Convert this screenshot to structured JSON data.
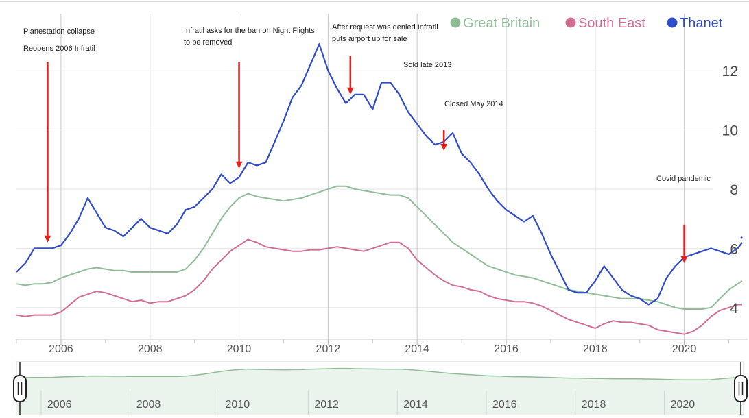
{
  "chart_data": {
    "type": "line",
    "title": "",
    "xlabel": "",
    "ylabel": "",
    "xlim": [
      2005.0,
      2021.3
    ],
    "ylim": [
      3.0,
      13.0
    ],
    "y_ticks": [
      "12",
      "10",
      "8",
      "6",
      "4"
    ],
    "x_ticks": [
      "2006",
      "2008",
      "2010",
      "2012",
      "2014",
      "2016",
      "2018",
      "2020"
    ],
    "navigator_ticks": [
      "2006",
      "2008",
      "2010",
      "2012",
      "2014",
      "2016",
      "2018",
      "2020"
    ],
    "grid": true,
    "legend_position": "top-right",
    "series": [
      {
        "name": "Great Britain",
        "color": "#8fbc96",
        "points": [
          [
            2005.0,
            4.8
          ],
          [
            2005.2,
            4.75
          ],
          [
            2005.4,
            4.8
          ],
          [
            2005.6,
            4.8
          ],
          [
            2005.8,
            4.85
          ],
          [
            2006.0,
            5.0
          ],
          [
            2006.2,
            5.1
          ],
          [
            2006.4,
            5.2
          ],
          [
            2006.6,
            5.3
          ],
          [
            2006.8,
            5.35
          ],
          [
            2007.0,
            5.3
          ],
          [
            2007.2,
            5.25
          ],
          [
            2007.4,
            5.25
          ],
          [
            2007.6,
            5.2
          ],
          [
            2007.8,
            5.2
          ],
          [
            2008.0,
            5.2
          ],
          [
            2008.2,
            5.2
          ],
          [
            2008.4,
            5.2
          ],
          [
            2008.6,
            5.2
          ],
          [
            2008.8,
            5.3
          ],
          [
            2009.0,
            5.6
          ],
          [
            2009.2,
            6.0
          ],
          [
            2009.4,
            6.5
          ],
          [
            2009.6,
            7.0
          ],
          [
            2009.8,
            7.4
          ],
          [
            2010.0,
            7.7
          ],
          [
            2010.2,
            7.85
          ],
          [
            2010.4,
            7.75
          ],
          [
            2010.6,
            7.7
          ],
          [
            2010.8,
            7.65
          ],
          [
            2011.0,
            7.6
          ],
          [
            2011.2,
            7.65
          ],
          [
            2011.4,
            7.7
          ],
          [
            2011.6,
            7.8
          ],
          [
            2011.8,
            7.9
          ],
          [
            2012.0,
            8.0
          ],
          [
            2012.2,
            8.1
          ],
          [
            2012.4,
            8.1
          ],
          [
            2012.6,
            8.0
          ],
          [
            2012.8,
            7.95
          ],
          [
            2013.0,
            7.9
          ],
          [
            2013.2,
            7.85
          ],
          [
            2013.4,
            7.8
          ],
          [
            2013.6,
            7.8
          ],
          [
            2013.8,
            7.7
          ],
          [
            2014.0,
            7.4
          ],
          [
            2014.2,
            7.1
          ],
          [
            2014.4,
            6.8
          ],
          [
            2014.6,
            6.5
          ],
          [
            2014.8,
            6.2
          ],
          [
            2015.0,
            6.0
          ],
          [
            2015.2,
            5.8
          ],
          [
            2015.4,
            5.6
          ],
          [
            2015.6,
            5.4
          ],
          [
            2015.8,
            5.3
          ],
          [
            2016.0,
            5.2
          ],
          [
            2016.2,
            5.1
          ],
          [
            2016.4,
            5.05
          ],
          [
            2016.6,
            5.0
          ],
          [
            2016.8,
            4.9
          ],
          [
            2017.0,
            4.8
          ],
          [
            2017.2,
            4.7
          ],
          [
            2017.4,
            4.6
          ],
          [
            2017.6,
            4.55
          ],
          [
            2017.8,
            4.5
          ],
          [
            2018.0,
            4.45
          ],
          [
            2018.2,
            4.4
          ],
          [
            2018.4,
            4.35
          ],
          [
            2018.6,
            4.3
          ],
          [
            2018.8,
            4.3
          ],
          [
            2019.0,
            4.3
          ],
          [
            2019.2,
            4.25
          ],
          [
            2019.4,
            4.2
          ],
          [
            2019.6,
            4.1
          ],
          [
            2019.8,
            4.0
          ],
          [
            2020.0,
            3.95
          ],
          [
            2020.2,
            3.95
          ],
          [
            2020.4,
            3.95
          ],
          [
            2020.6,
            4.0
          ],
          [
            2020.8,
            4.3
          ],
          [
            2021.0,
            4.6
          ],
          [
            2021.2,
            4.8
          ],
          [
            2021.3,
            4.9
          ]
        ]
      },
      {
        "name": "South East",
        "color": "#cf6d92",
        "points": [
          [
            2005.0,
            3.75
          ],
          [
            2005.2,
            3.7
          ],
          [
            2005.4,
            3.75
          ],
          [
            2005.6,
            3.75
          ],
          [
            2005.8,
            3.75
          ],
          [
            2006.0,
            3.85
          ],
          [
            2006.2,
            4.1
          ],
          [
            2006.4,
            4.35
          ],
          [
            2006.6,
            4.45
          ],
          [
            2006.8,
            4.55
          ],
          [
            2007.0,
            4.5
          ],
          [
            2007.2,
            4.4
          ],
          [
            2007.4,
            4.3
          ],
          [
            2007.6,
            4.2
          ],
          [
            2007.8,
            4.25
          ],
          [
            2008.0,
            4.15
          ],
          [
            2008.2,
            4.2
          ],
          [
            2008.4,
            4.2
          ],
          [
            2008.6,
            4.3
          ],
          [
            2008.8,
            4.4
          ],
          [
            2009.0,
            4.6
          ],
          [
            2009.2,
            4.9
          ],
          [
            2009.4,
            5.3
          ],
          [
            2009.6,
            5.6
          ],
          [
            2009.8,
            5.9
          ],
          [
            2010.0,
            6.1
          ],
          [
            2010.2,
            6.3
          ],
          [
            2010.4,
            6.2
          ],
          [
            2010.6,
            6.05
          ],
          [
            2010.8,
            6.0
          ],
          [
            2011.0,
            5.95
          ],
          [
            2011.2,
            5.9
          ],
          [
            2011.4,
            5.9
          ],
          [
            2011.6,
            5.95
          ],
          [
            2011.8,
            5.95
          ],
          [
            2012.0,
            6.0
          ],
          [
            2012.2,
            6.05
          ],
          [
            2012.4,
            6.0
          ],
          [
            2012.6,
            5.95
          ],
          [
            2012.8,
            5.9
          ],
          [
            2013.0,
            6.0
          ],
          [
            2013.2,
            6.1
          ],
          [
            2013.4,
            6.2
          ],
          [
            2013.6,
            6.2
          ],
          [
            2013.8,
            6.0
          ],
          [
            2014.0,
            5.6
          ],
          [
            2014.2,
            5.35
          ],
          [
            2014.4,
            5.1
          ],
          [
            2014.6,
            4.9
          ],
          [
            2014.8,
            4.75
          ],
          [
            2015.0,
            4.7
          ],
          [
            2015.2,
            4.6
          ],
          [
            2015.4,
            4.55
          ],
          [
            2015.6,
            4.4
          ],
          [
            2015.8,
            4.3
          ],
          [
            2016.0,
            4.25
          ],
          [
            2016.2,
            4.2
          ],
          [
            2016.4,
            4.2
          ],
          [
            2016.6,
            4.15
          ],
          [
            2016.8,
            4.05
          ],
          [
            2017.0,
            3.9
          ],
          [
            2017.2,
            3.75
          ],
          [
            2017.4,
            3.6
          ],
          [
            2017.6,
            3.5
          ],
          [
            2017.8,
            3.4
          ],
          [
            2018.0,
            3.3
          ],
          [
            2018.2,
            3.45
          ],
          [
            2018.4,
            3.55
          ],
          [
            2018.6,
            3.5
          ],
          [
            2018.8,
            3.5
          ],
          [
            2019.0,
            3.45
          ],
          [
            2019.2,
            3.4
          ],
          [
            2019.4,
            3.25
          ],
          [
            2019.6,
            3.2
          ],
          [
            2019.8,
            3.15
          ],
          [
            2020.0,
            3.1
          ],
          [
            2020.2,
            3.2
          ],
          [
            2020.4,
            3.4
          ],
          [
            2020.6,
            3.7
          ],
          [
            2020.8,
            3.9
          ],
          [
            2021.0,
            4.0
          ],
          [
            2021.2,
            4.1
          ],
          [
            2021.3,
            4.1
          ]
        ]
      },
      {
        "name": "Thanet",
        "color": "#2f4bc7",
        "points": [
          [
            2005.0,
            5.2
          ],
          [
            2005.2,
            5.5
          ],
          [
            2005.4,
            6.0
          ],
          [
            2005.6,
            6.0
          ],
          [
            2005.8,
            6.0
          ],
          [
            2006.0,
            6.1
          ],
          [
            2006.2,
            6.5
          ],
          [
            2006.4,
            7.0
          ],
          [
            2006.6,
            7.7
          ],
          [
            2006.8,
            7.2
          ],
          [
            2007.0,
            6.7
          ],
          [
            2007.2,
            6.6
          ],
          [
            2007.4,
            6.4
          ],
          [
            2007.6,
            6.7
          ],
          [
            2007.8,
            7.0
          ],
          [
            2008.0,
            6.7
          ],
          [
            2008.2,
            6.6
          ],
          [
            2008.4,
            6.5
          ],
          [
            2008.6,
            6.8
          ],
          [
            2008.8,
            7.3
          ],
          [
            2009.0,
            7.4
          ],
          [
            2009.2,
            7.7
          ],
          [
            2009.4,
            8.0
          ],
          [
            2009.6,
            8.5
          ],
          [
            2009.8,
            8.2
          ],
          [
            2010.0,
            8.4
          ],
          [
            2010.2,
            8.9
          ],
          [
            2010.4,
            8.8
          ],
          [
            2010.6,
            8.9
          ],
          [
            2010.8,
            9.6
          ],
          [
            2011.0,
            10.3
          ],
          [
            2011.2,
            11.1
          ],
          [
            2011.4,
            11.5
          ],
          [
            2011.6,
            12.2
          ],
          [
            2011.8,
            12.9
          ],
          [
            2012.0,
            12.0
          ],
          [
            2012.2,
            11.4
          ],
          [
            2012.4,
            10.9
          ],
          [
            2012.6,
            11.2
          ],
          [
            2012.8,
            11.2
          ],
          [
            2013.0,
            10.7
          ],
          [
            2013.2,
            11.6
          ],
          [
            2013.4,
            11.6
          ],
          [
            2013.6,
            11.2
          ],
          [
            2013.8,
            10.6
          ],
          [
            2014.0,
            10.2
          ],
          [
            2014.2,
            9.8
          ],
          [
            2014.4,
            9.5
          ],
          [
            2014.6,
            9.6
          ],
          [
            2014.8,
            9.9
          ],
          [
            2015.0,
            9.2
          ],
          [
            2015.2,
            8.9
          ],
          [
            2015.4,
            8.5
          ],
          [
            2015.6,
            8.0
          ],
          [
            2015.8,
            7.6
          ],
          [
            2016.0,
            7.3
          ],
          [
            2016.2,
            7.1
          ],
          [
            2016.4,
            6.9
          ],
          [
            2016.6,
            7.1
          ],
          [
            2016.8,
            6.5
          ],
          [
            2017.0,
            5.8
          ],
          [
            2017.2,
            5.2
          ],
          [
            2017.4,
            4.6
          ],
          [
            2017.6,
            4.5
          ],
          [
            2017.8,
            4.5
          ],
          [
            2018.0,
            4.9
          ],
          [
            2018.2,
            5.4
          ],
          [
            2018.4,
            5.0
          ],
          [
            2018.6,
            4.6
          ],
          [
            2018.8,
            4.4
          ],
          [
            2019.0,
            4.3
          ],
          [
            2019.2,
            4.1
          ],
          [
            2019.4,
            4.3
          ],
          [
            2019.6,
            5.0
          ],
          [
            2019.8,
            5.4
          ],
          [
            2020.0,
            5.7
          ],
          [
            2020.2,
            5.8
          ],
          [
            2020.4,
            5.9
          ],
          [
            2020.6,
            6.0
          ],
          [
            2020.8,
            5.9
          ],
          [
            2021.0,
            5.8
          ],
          [
            2021.2,
            6.0
          ],
          [
            2021.3,
            6.2
          ]
        ]
      }
    ],
    "annotations": [
      {
        "lines": [
          "Planestation collapse",
          "",
          "Reopens 2006 Infratil"
        ],
        "arrow_x": 2005.7,
        "arrow_y_top": 12.3,
        "arrow_y_bottom": 6.2
      },
      {
        "lines": [
          "Infratil asks for the ban on Night Flights",
          "to be removed"
        ],
        "arrow_x": 2010.0,
        "arrow_y_top": 12.3,
        "arrow_y_bottom": 8.7
      },
      {
        "lines": [
          "After request was denied Infratil",
          "puts airport up for sale"
        ],
        "arrow_x": 2012.5,
        "arrow_y_top": 12.5,
        "arrow_y_bottom": 11.2
      },
      {
        "lines": [
          "Sold late 2013"
        ],
        "arrow_x": null
      },
      {
        "lines": [
          "Closed May 2014"
        ],
        "arrow_x": 2014.6,
        "arrow_y_top": 10.0,
        "arrow_y_bottom": 9.3
      },
      {
        "lines": [
          "Covid pandemic"
        ],
        "arrow_x": 2020.0,
        "arrow_y_top": 6.8,
        "arrow_y_bottom": 5.5
      }
    ]
  }
}
